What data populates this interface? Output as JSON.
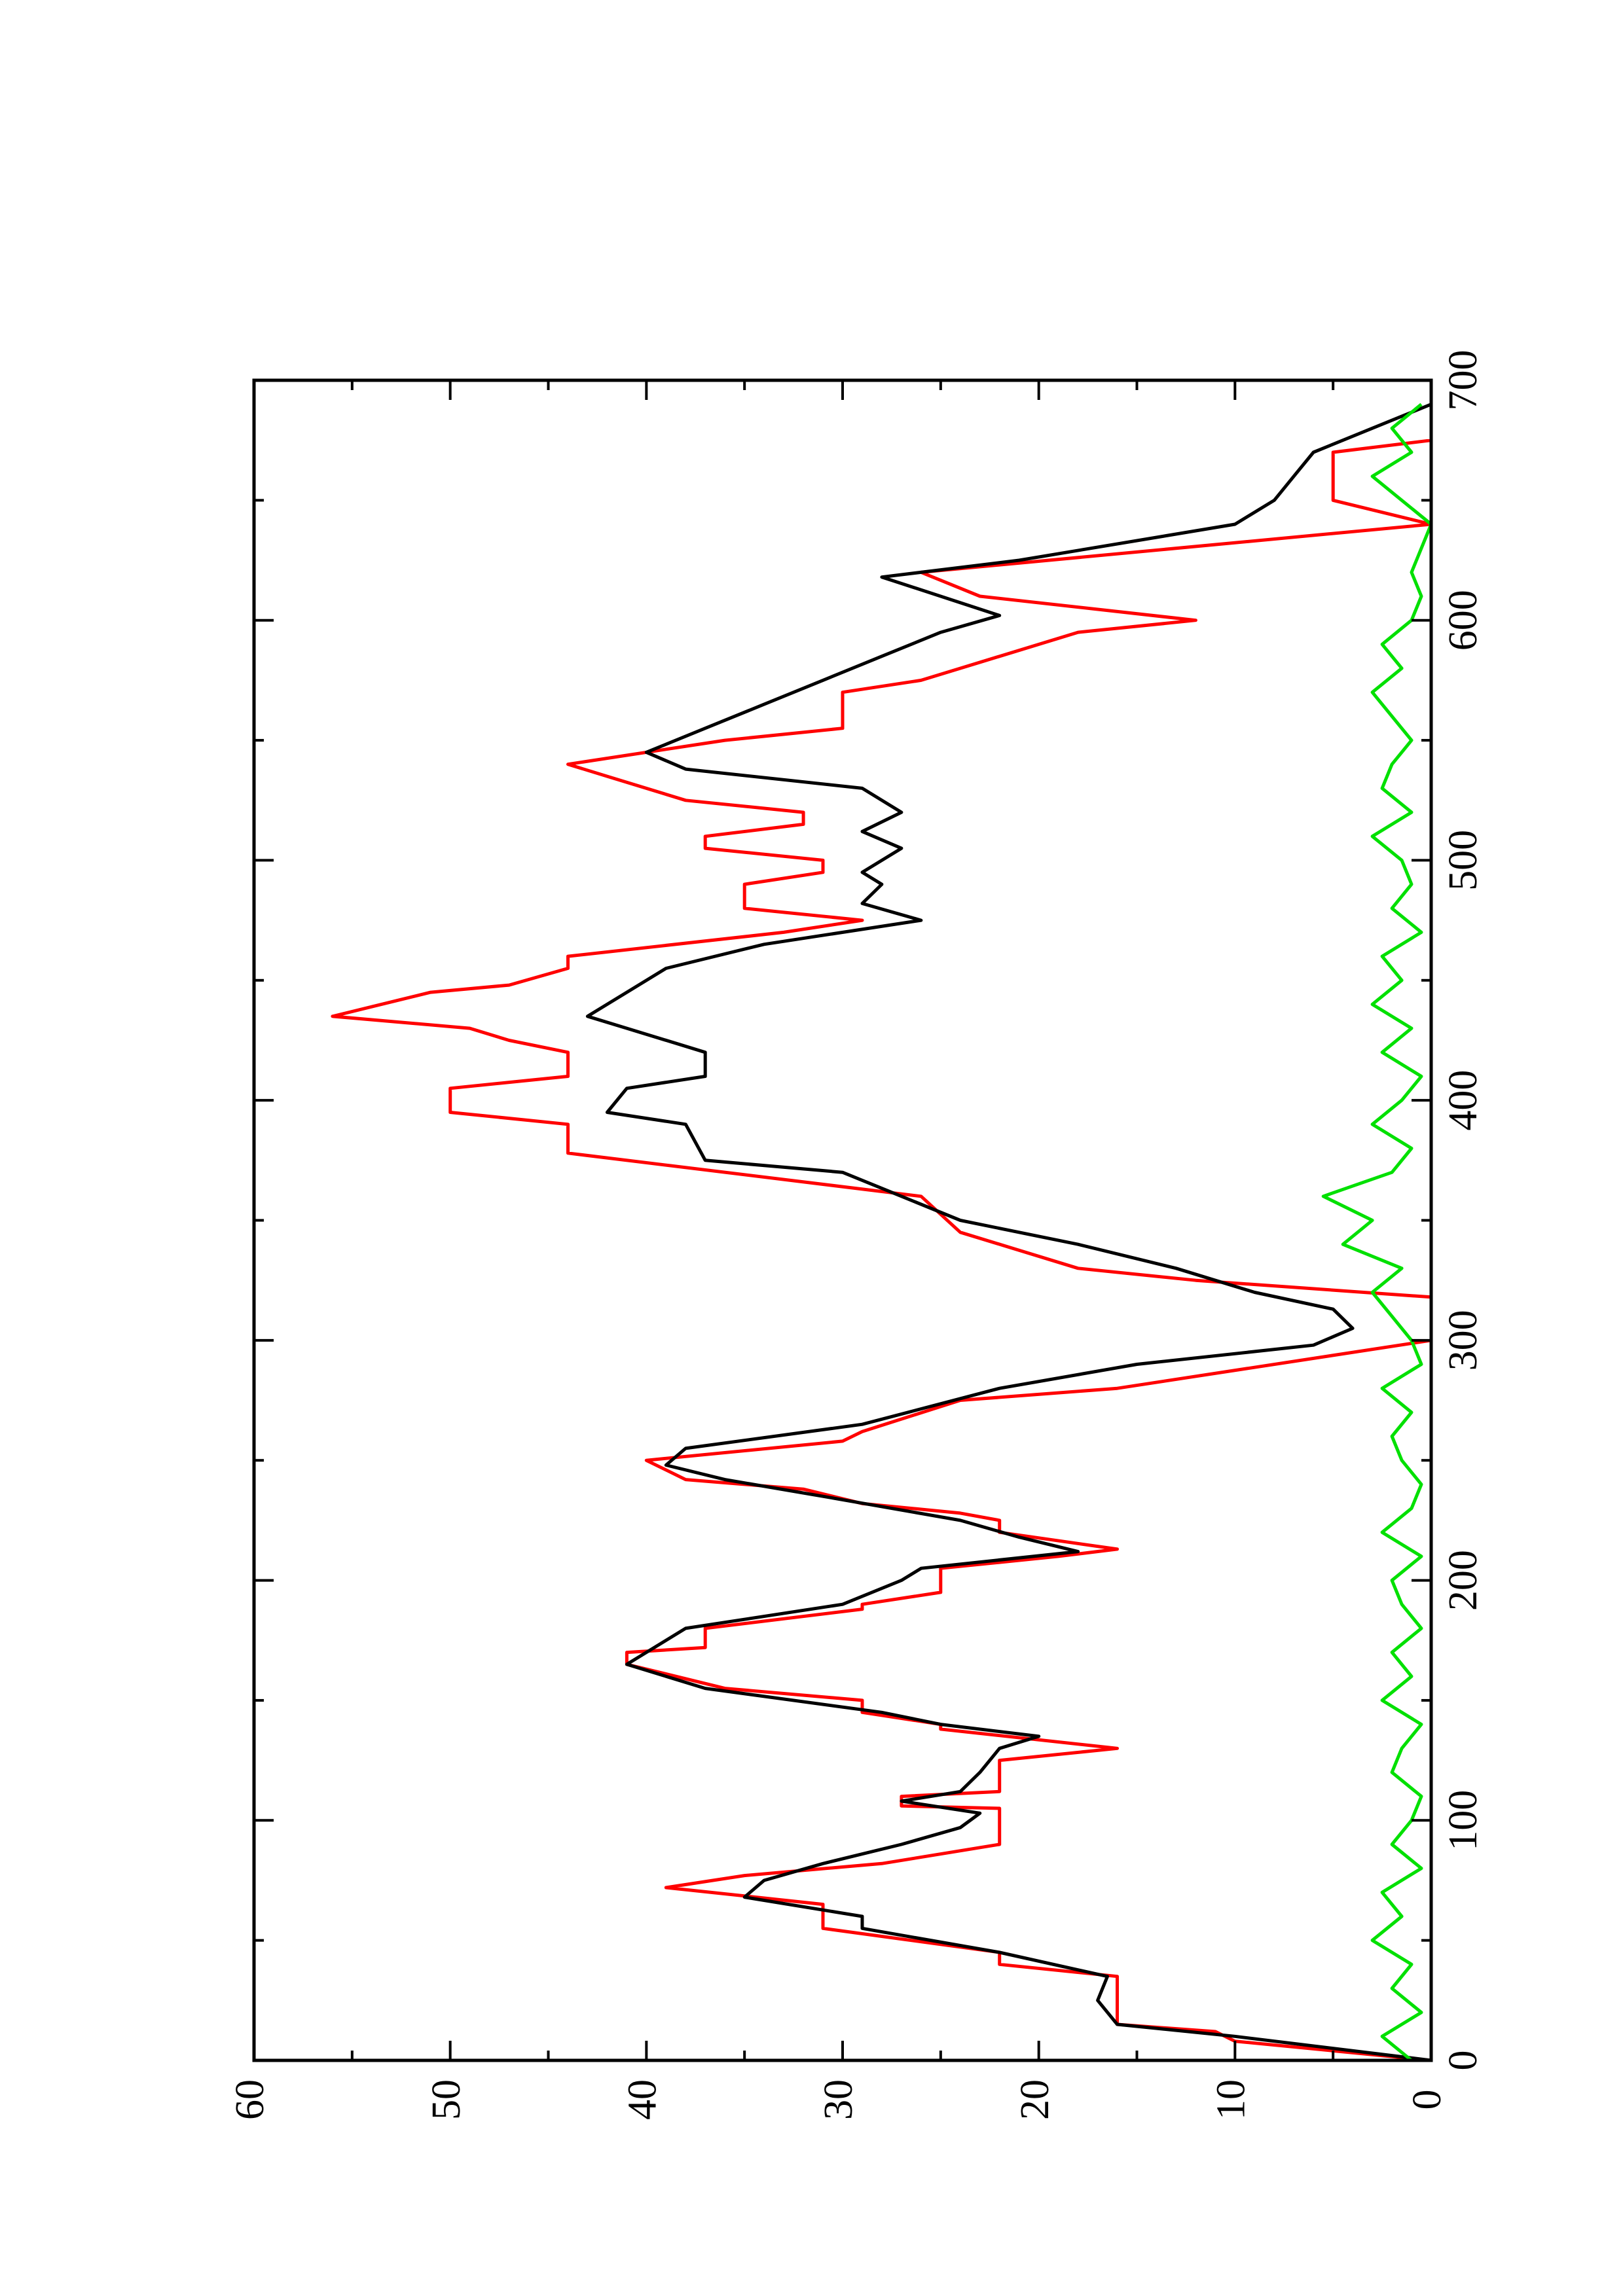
{
  "chart_data": {
    "type": "line",
    "xlim": [
      0,
      700
    ],
    "xticks": [
      0,
      100,
      200,
      300,
      400,
      500,
      600,
      700
    ],
    "ylim": [
      0,
      60
    ],
    "yticks": [
      0,
      10,
      20,
      30,
      40,
      50,
      60
    ],
    "grid": false,
    "series": [
      {
        "color": "#ff0000",
        "x": [
          0,
          8,
          12,
          15,
          35,
          40,
          45,
          55,
          65,
          72,
          77,
          82,
          90,
          105,
          106,
          110,
          112,
          125,
          130,
          138,
          140,
          145,
          150,
          155,
          165,
          170,
          172,
          180,
          188,
          190,
          195,
          205,
          210,
          213,
          220,
          225,
          228,
          232,
          238,
          242,
          250,
          258,
          262,
          275,
          280,
          300,
          318,
          325,
          330,
          345,
          360,
          378,
          390,
          395,
          405,
          410,
          420,
          425,
          430,
          435,
          445,
          448,
          455,
          460,
          470,
          475,
          480,
          490,
          495,
          500,
          505,
          510,
          515,
          520,
          525,
          535,
          540,
          550,
          555,
          570,
          575,
          595,
          600,
          610,
          620,
          640,
          650,
          670,
          675,
          690
        ],
        "values": [
          0,
          10,
          11,
          16,
          16,
          22,
          22,
          31,
          31,
          39,
          35,
          28,
          22,
          22,
          27,
          27,
          22,
          22,
          16,
          25,
          25,
          29,
          29,
          36,
          41,
          41,
          37,
          37,
          29,
          29,
          25,
          25,
          19,
          16,
          22,
          22,
          24,
          29,
          32,
          38,
          40,
          30,
          29,
          24,
          16,
          0,
          0,
          12,
          18,
          24,
          26,
          44,
          44,
          50,
          50,
          44,
          44,
          47,
          49,
          56,
          51,
          47,
          44,
          44,
          33,
          29,
          35,
          35,
          31,
          31,
          37,
          37,
          32,
          32,
          38,
          42,
          44,
          36,
          30,
          30,
          26,
          18,
          12,
          23,
          26,
          0,
          5,
          5,
          0,
          0
        ]
      },
      {
        "color": "#000000",
        "x": [
          0,
          10,
          15,
          25,
          35,
          45,
          55,
          60,
          68,
          75,
          82,
          90,
          97,
          103,
          108,
          112,
          120,
          130,
          135,
          140,
          145,
          155,
          165,
          175,
          180,
          190,
          200,
          205,
          212,
          218,
          225,
          235,
          242,
          248,
          255,
          265,
          280,
          290,
          298,
          305,
          313,
          320,
          330,
          340,
          350,
          360,
          370,
          375,
          390,
          395,
          405,
          410,
          420,
          430,
          435,
          445,
          455,
          465,
          475,
          482,
          490,
          495,
          505,
          512,
          520,
          530,
          538,
          545,
          555,
          565,
          575,
          585,
          595,
          602,
          618,
          625,
          640,
          650,
          660,
          670,
          680,
          690
        ],
        "values": [
          0,
          10,
          16,
          17,
          16.5,
          22,
          29,
          29,
          35,
          34,
          31,
          27,
          24,
          23,
          27,
          24,
          23,
          22,
          20,
          25,
          28,
          37,
          41,
          39,
          38,
          30,
          27,
          26,
          18,
          21,
          24,
          31,
          36,
          39,
          38,
          29,
          22,
          15,
          6,
          4,
          5,
          9,
          13,
          18,
          24,
          27,
          30,
          37,
          38,
          42,
          41,
          37,
          37,
          41,
          43,
          41,
          39,
          34,
          26,
          29,
          28,
          29,
          27,
          29,
          27,
          29,
          38,
          40,
          37,
          34,
          31,
          28,
          25,
          22,
          28,
          21,
          10,
          8,
          7,
          6,
          3,
          0
        ]
      },
      {
        "color": "#00e000",
        "x": [
          0,
          10,
          20,
          30,
          40,
          50,
          60,
          70,
          80,
          90,
          100,
          110,
          120,
          130,
          140,
          150,
          160,
          170,
          180,
          190,
          200,
          210,
          220,
          230,
          240,
          250,
          260,
          270,
          280,
          290,
          300,
          310,
          320,
          330,
          340,
          350,
          360,
          370,
          380,
          390,
          400,
          410,
          420,
          430,
          440,
          450,
          460,
          470,
          480,
          490,
          500,
          510,
          520,
          530,
          540,
          550,
          560,
          570,
          580,
          590,
          600,
          610,
          620,
          630,
          640,
          650,
          660,
          670,
          680,
          690
        ],
        "values": [
          1,
          2.5,
          0.5,
          2,
          1,
          3,
          1.5,
          2.5,
          0.5,
          2,
          1,
          0.5,
          2,
          1.5,
          0.5,
          2.5,
          1,
          2,
          0.5,
          1.5,
          2,
          0.5,
          2.5,
          1,
          0.5,
          1.5,
          2,
          1,
          2.5,
          0.5,
          1,
          2,
          3,
          1.5,
          4.5,
          3,
          5.5,
          2,
          1,
          3,
          1.5,
          0.5,
          2.5,
          1,
          3,
          1.5,
          2.5,
          0.5,
          2,
          1,
          1.5,
          3,
          1,
          2.5,
          2,
          1,
          2,
          3,
          1.5,
          2.5,
          1,
          0.5,
          1,
          0.5,
          0,
          1.5,
          3,
          1,
          2,
          0.5
        ]
      }
    ]
  }
}
